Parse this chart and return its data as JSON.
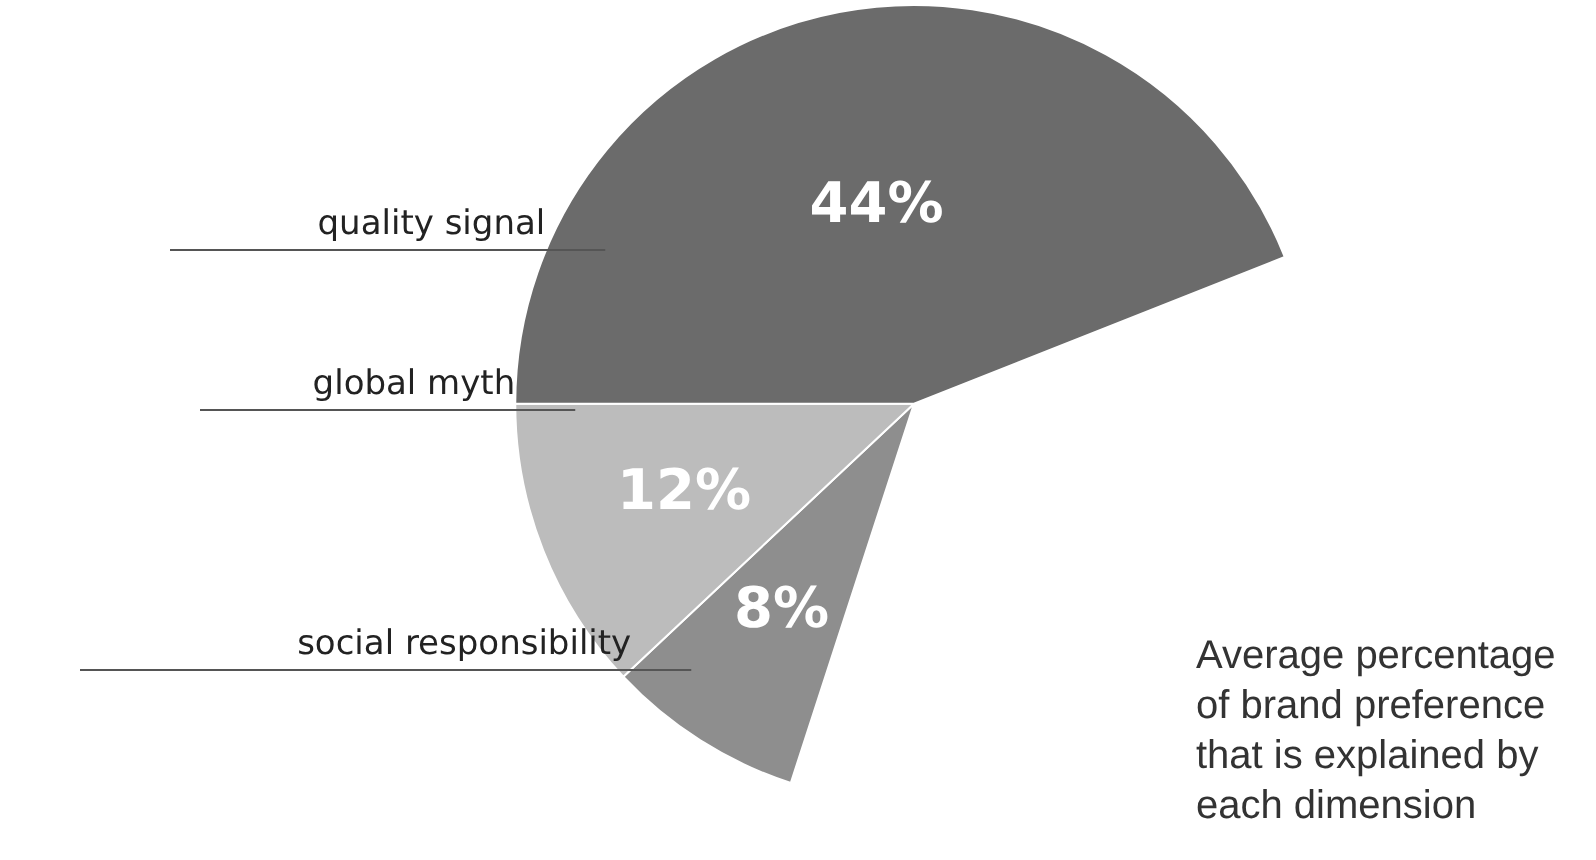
{
  "chart_data": {
    "type": "pie",
    "categories": [
      "quality signal",
      "global myth",
      "social responsibility"
    ],
    "values": [
      44,
      12,
      8
    ],
    "colors": [
      "#6b6b6b",
      "#bcbcbc",
      "#8e8e8e"
    ],
    "value_labels": [
      "44%",
      "12%",
      "8%"
    ],
    "annotations": [
      "Average percentage of brand preference that is explained by each dimension"
    ]
  }
}
